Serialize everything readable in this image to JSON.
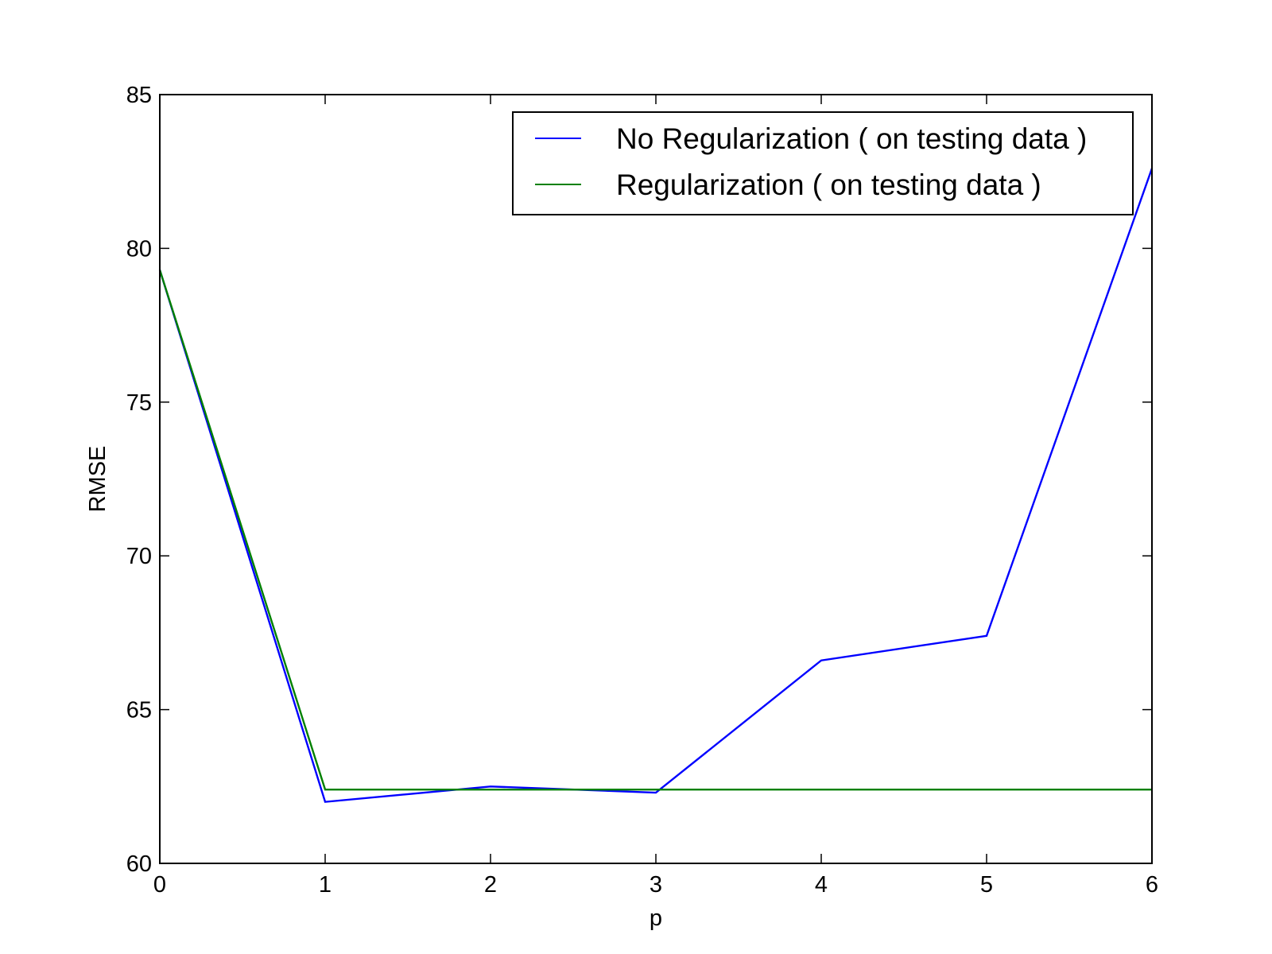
{
  "chart_data": {
    "type": "line",
    "xlabel": "p",
    "ylabel": "RMSE",
    "xlim": [
      0,
      6
    ],
    "ylim": [
      60,
      85
    ],
    "xticks": [
      0,
      1,
      2,
      3,
      4,
      5,
      6
    ],
    "yticks": [
      60,
      65,
      70,
      75,
      80,
      85
    ],
    "x": [
      0,
      1,
      2,
      3,
      4,
      5,
      6
    ],
    "grid": false,
    "legend_position": "top-right",
    "series": [
      {
        "name": "No Regularization ( on testing data )",
        "color": "#0000ff",
        "values": [
          79.3,
          62.0,
          62.5,
          62.3,
          66.6,
          67.4,
          82.6
        ]
      },
      {
        "name": "Regularization ( on testing data )",
        "color": "#008000",
        "values": [
          79.3,
          62.4,
          62.4,
          62.4,
          62.4,
          62.4,
          62.4
        ]
      }
    ]
  }
}
